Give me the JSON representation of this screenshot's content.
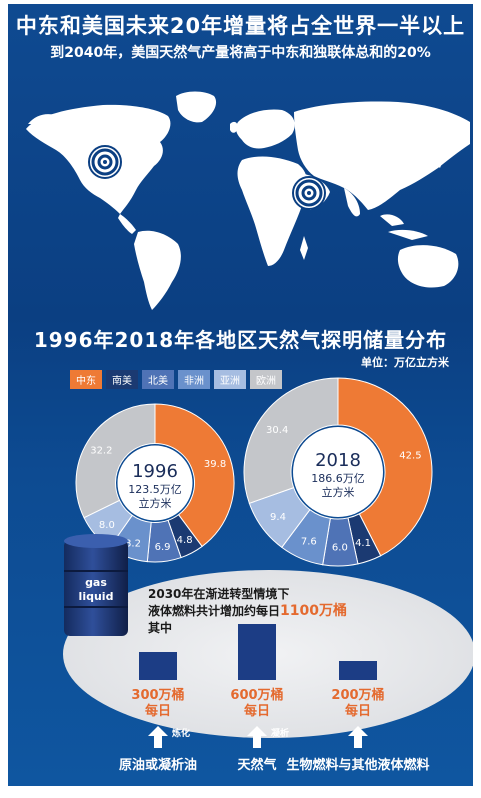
{
  "header": {
    "title": "中东和美国未来20年增量将占全世界一半以上",
    "subtitle": "到2040年，美国天然气产量将高于中东和独联体总和的20%"
  },
  "chart_section": {
    "title": "1996年2018年各地区天然气探明储量分布",
    "unit": "单位：万亿立方米"
  },
  "colors": {
    "中东": "#ee7a35",
    "南美": "#1b3a72",
    "北美": "#4f73b6",
    "非洲": "#6a91cc",
    "亚洲": "#a6bde1",
    "欧洲": "#c4c6ca"
  },
  "chart_data": [
    {
      "type": "pie",
      "year": "1996",
      "center_year": "1996",
      "center_total": "123.5万亿",
      "center_unit": "立方米",
      "categories": [
        "中东",
        "南美",
        "北美",
        "非洲",
        "亚洲",
        "欧洲"
      ],
      "values": [
        39.8,
        4.8,
        6.9,
        8.2,
        8.0,
        32.2
      ]
    },
    {
      "type": "pie",
      "year": "2018",
      "center_year": "2018",
      "center_total": "186.6万亿",
      "center_unit": "立方米",
      "categories": [
        "中东",
        "南美",
        "北美",
        "非洲",
        "亚洲",
        "欧洲"
      ],
      "values": [
        42.5,
        4.1,
        6.0,
        7.6,
        9.4,
        30.4
      ]
    }
  ],
  "barrel": {
    "line1": "gas",
    "line2": "liquid"
  },
  "forecast": {
    "line1": "2030年在渐进转型情境下",
    "line2_prefix": "液体燃料共计增加约每日",
    "line2_highlight": "1100万桶",
    "line3": "其中",
    "items": [
      {
        "amount": "300万桶",
        "per": "每日",
        "value": 300,
        "verb": "炼化",
        "source": "原油或凝析油"
      },
      {
        "amount": "600万桶",
        "per": "每日",
        "value": 600,
        "verb": "凝析",
        "source": "天然气"
      },
      {
        "amount": "200万桶",
        "per": "每日",
        "value": 200,
        "verb": "",
        "source": "生物燃料与其他液体燃料"
      }
    ]
  }
}
